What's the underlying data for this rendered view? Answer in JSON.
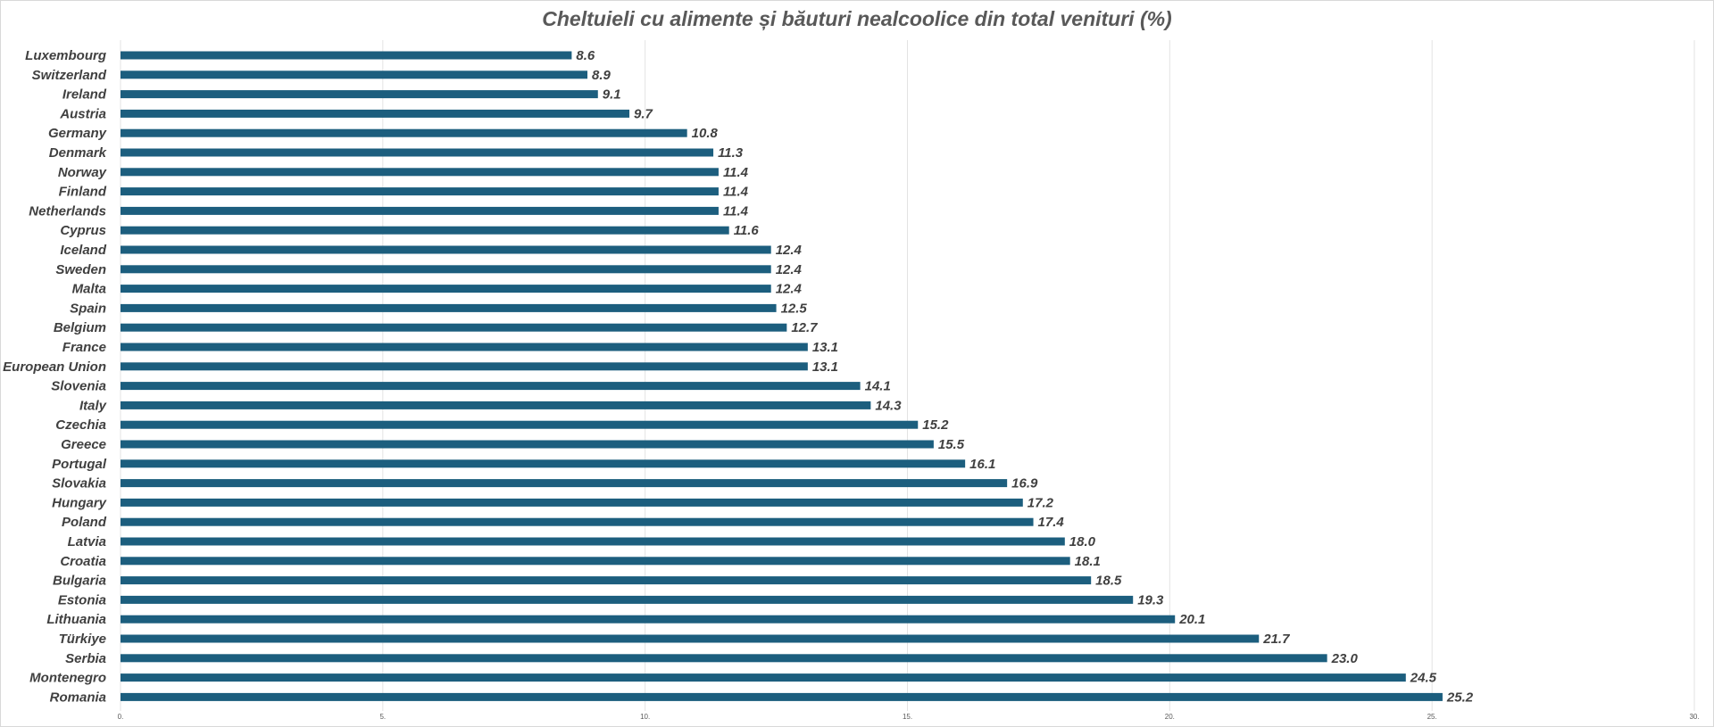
{
  "colors": {
    "bar": "#1c5e7e",
    "background": "#ffffff",
    "grid": "#e3e3e3",
    "text": "#404040",
    "title": "#595959"
  },
  "chart_data": {
    "type": "bar",
    "orientation": "horizontal",
    "title": "Cheltuieli cu alimente și băuturi nealcoolice din total venituri (%)",
    "xlabel": "",
    "ylabel": "",
    "xlim": [
      0,
      30
    ],
    "x_ticks": [
      0,
      5,
      10,
      15,
      20,
      25,
      30
    ],
    "x_tick_labels": [
      "0.",
      "5.",
      "10.",
      "15.",
      "20.",
      "25.",
      "30."
    ],
    "grid": "vertical",
    "legend": "none",
    "data_labels": true,
    "categories": [
      "Luxembourg",
      "Switzerland",
      "Ireland",
      "Austria",
      "Germany",
      "Denmark",
      "Norway",
      "Finland",
      "Netherlands",
      "Cyprus",
      "Iceland",
      "Sweden",
      "Malta",
      "Spain",
      "Belgium",
      "France",
      "European Union",
      "Slovenia",
      "Italy",
      "Czechia",
      "Greece",
      "Portugal",
      "Slovakia",
      "Hungary",
      "Poland",
      "Latvia",
      "Croatia",
      "Bulgaria",
      "Estonia",
      "Lithuania",
      "Türkiye",
      "Serbia",
      "Montenegro",
      "Romania"
    ],
    "values": [
      8.6,
      8.9,
      9.1,
      9.7,
      10.8,
      11.3,
      11.4,
      11.4,
      11.4,
      11.6,
      12.4,
      12.4,
      12.4,
      12.5,
      12.7,
      13.1,
      13.1,
      14.1,
      14.3,
      15.2,
      15.5,
      16.1,
      16.9,
      17.2,
      17.4,
      18.0,
      18.1,
      18.5,
      19.3,
      20.1,
      21.7,
      23.0,
      24.5,
      25.2
    ],
    "value_labels": [
      "8.6",
      "8.9",
      "9.1",
      "9.7",
      "10.8",
      "11.3",
      "11.4",
      "11.4",
      "11.4",
      "11.6",
      "12.4",
      "12.4",
      "12.4",
      "12.5",
      "12.7",
      "13.1",
      "13.1",
      "14.1",
      "14.3",
      "15.2",
      "15.5",
      "16.1",
      "16.9",
      "17.2",
      "17.4",
      "18.0",
      "18.1",
      "18.5",
      "19.3",
      "20.1",
      "21.7",
      "23.0",
      "24.5",
      "25.2"
    ]
  }
}
